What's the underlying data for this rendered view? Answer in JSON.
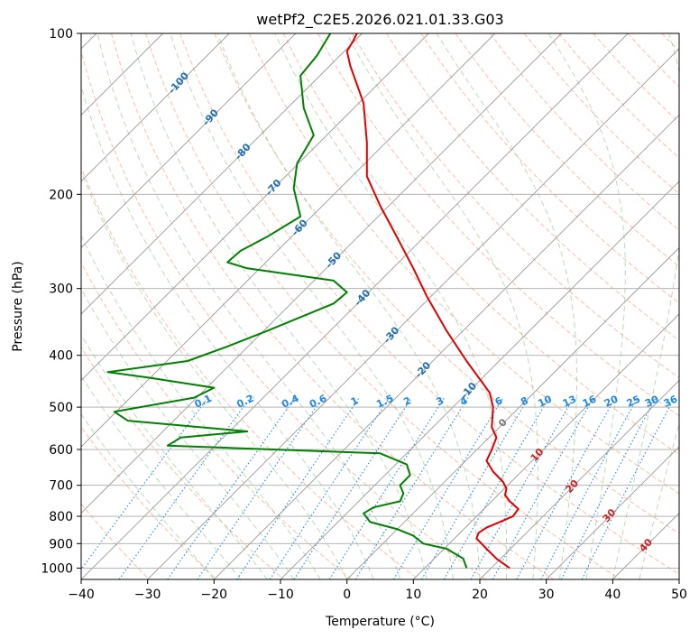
{
  "chart_data": {
    "type": "line",
    "title": "wetPf2_C2E5.2026.021.01.33.G03",
    "xlabel": "Temperature (°C)",
    "ylabel": "Pressure (hPa)",
    "xlim": [
      -40,
      50
    ],
    "ylim": [
      1050,
      100
    ],
    "y_scale": "log",
    "grid": true,
    "x_ticks": [
      -40,
      -30,
      -20,
      -10,
      0,
      10,
      20,
      30,
      40,
      50
    ],
    "y_ticks": [
      100,
      200,
      300,
      400,
      500,
      600,
      700,
      800,
      900,
      1000
    ],
    "x_tick_labels": [
      "−40",
      "−30",
      "−20",
      "−10",
      "0",
      "10",
      "20",
      "30",
      "40",
      "50"
    ],
    "y_tick_labels": [
      "100",
      "200",
      "300",
      "400",
      "500",
      "600",
      "700",
      "800",
      "900",
      "1000"
    ],
    "series": [
      {
        "color": "#e00000",
        "points": [
          [
            24.5,
            1000
          ],
          [
            22.5,
            960
          ],
          [
            21.0,
            920
          ],
          [
            19.5,
            880
          ],
          [
            19.8,
            860
          ],
          [
            21.0,
            840
          ],
          [
            23.0,
            820
          ],
          [
            25.0,
            800
          ],
          [
            25.8,
            775
          ],
          [
            24.5,
            750
          ],
          [
            23.8,
            730
          ],
          [
            24.0,
            710
          ],
          [
            23.5,
            690
          ],
          [
            22.0,
            660
          ],
          [
            21.0,
            630
          ],
          [
            21.8,
            600
          ],
          [
            22.5,
            570
          ],
          [
            21.8,
            545
          ],
          [
            22.0,
            500
          ],
          [
            21.5,
            470
          ],
          [
            18.0,
            410
          ],
          [
            15.0,
            360
          ],
          [
            12.0,
            310
          ],
          [
            10.0,
            275
          ],
          [
            7.5,
            240
          ],
          [
            5.0,
            210
          ],
          [
            3.0,
            185
          ],
          [
            3.0,
            160
          ],
          [
            2.5,
            135
          ],
          [
            0.5,
            115
          ],
          [
            0.0,
            108
          ],
          [
            1.0,
            103
          ],
          [
            1.5,
            100
          ]
        ]
      },
      {
        "color": "#008000",
        "points": [
          [
            18.0,
            1000
          ],
          [
            17.5,
            960
          ],
          [
            15.0,
            920
          ],
          [
            11.5,
            900
          ],
          [
            10.0,
            870
          ],
          [
            7.5,
            845
          ],
          [
            3.5,
            820
          ],
          [
            2.5,
            790
          ],
          [
            4.0,
            770
          ],
          [
            8.0,
            750
          ],
          [
            8.5,
            725
          ],
          [
            8.0,
            700
          ],
          [
            9.5,
            670
          ],
          [
            9.0,
            640
          ],
          [
            5.0,
            610
          ],
          [
            -27.0,
            590
          ],
          [
            -25.0,
            570
          ],
          [
            -15.0,
            555
          ],
          [
            -33.0,
            530
          ],
          [
            -35.0,
            510
          ],
          [
            -23.0,
            480
          ],
          [
            -20.0,
            460
          ],
          [
            -30.0,
            440
          ],
          [
            -36.0,
            430
          ],
          [
            -24.0,
            410
          ],
          [
            -18.0,
            385
          ],
          [
            -12.0,
            360
          ],
          [
            -2.0,
            320
          ],
          [
            0.0,
            305
          ],
          [
            -2.0,
            290
          ],
          [
            -15.0,
            275
          ],
          [
            -18.0,
            268
          ],
          [
            -16.0,
            255
          ],
          [
            -12.0,
            240
          ],
          [
            -7.0,
            220
          ],
          [
            -8.0,
            195
          ],
          [
            -7.5,
            175
          ],
          [
            -5.0,
            155
          ],
          [
            -6.5,
            138
          ],
          [
            -7.0,
            120
          ],
          [
            -4.5,
            110
          ],
          [
            -2.5,
            100
          ]
        ]
      }
    ],
    "isotherm_labels": [
      "-100",
      "-90",
      "-80",
      "-70",
      "-60",
      "-50",
      "-40",
      "-30",
      "-20",
      "-10",
      "0",
      "10",
      "20",
      "30",
      "40"
    ],
    "mixing_ratio_labels": [
      "0.1",
      "0.2",
      "0.4",
      "0.6",
      "1",
      "1.5",
      "2",
      "3",
      "4",
      "6",
      "8",
      "10",
      "13",
      "16",
      "20",
      "25",
      "30",
      "36"
    ]
  }
}
